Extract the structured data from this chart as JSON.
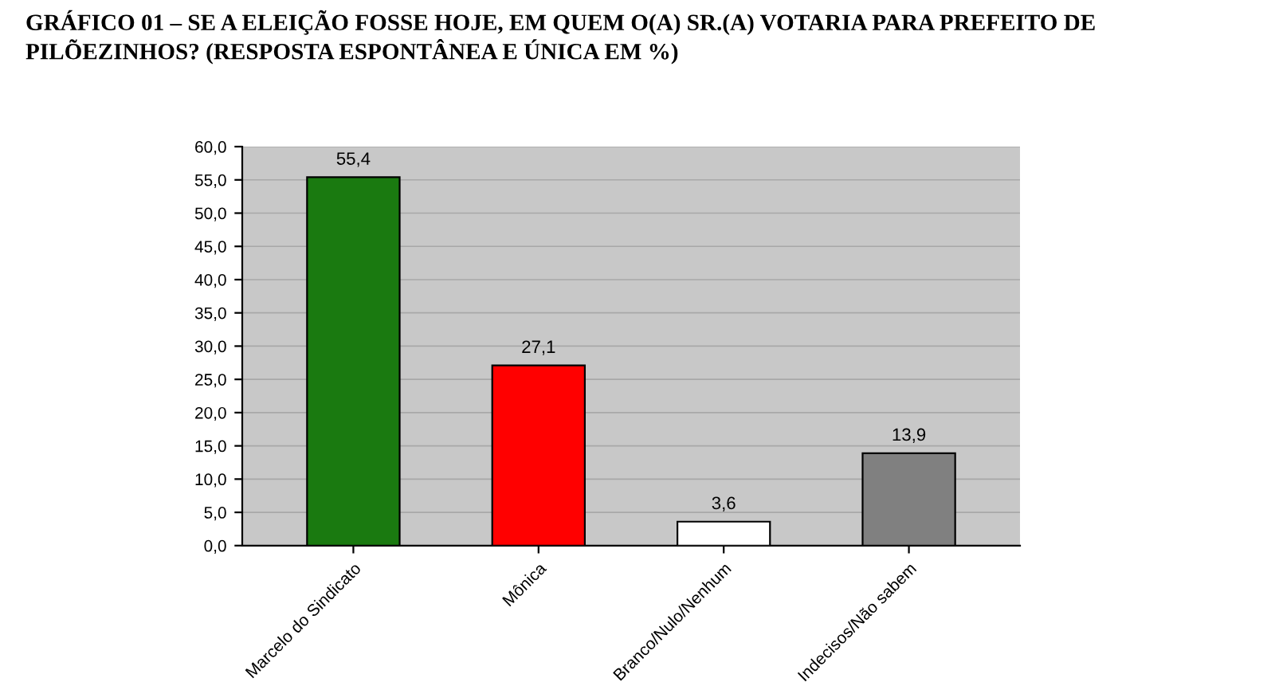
{
  "chart_data": {
    "type": "bar",
    "title": "GRÁFICO 01 – SE A ELEIÇÃO FOSSE HOJE, EM QUEM O(A) SR.(A) VOTARIA PARA PREFEITO DE PILÕEZINHOS? (RESPOSTA ESPONTÂNEA E ÚNICA EM %)",
    "categories": [
      "Marcelo do Sindicato",
      "Mônica",
      "Branco/Nulo/Nenhum",
      "Indecisos/Não sabem"
    ],
    "values": [
      55.4,
      27.1,
      3.6,
      13.9
    ],
    "value_labels": [
      "55,4",
      "27,1",
      "3,6",
      "13,9"
    ],
    "colors": [
      "#1a7a10",
      "#ff0000",
      "#ffffff",
      "#808080"
    ],
    "ylim": [
      0,
      60
    ],
    "yticks": [
      {
        "value": 0,
        "label": "0,0"
      },
      {
        "value": 5,
        "label": "5,0"
      },
      {
        "value": 10,
        "label": "10,0"
      },
      {
        "value": 15,
        "label": "15,0"
      },
      {
        "value": 20,
        "label": "20,0"
      },
      {
        "value": 25,
        "label": "25,0"
      },
      {
        "value": 30,
        "label": "30,0"
      },
      {
        "value": 35,
        "label": "35,0"
      },
      {
        "value": 40,
        "label": "40,0"
      },
      {
        "value": 45,
        "label": "45,0"
      },
      {
        "value": 50,
        "label": "50,0"
      },
      {
        "value": 55,
        "label": "55,0"
      },
      {
        "value": 60,
        "label": "60,0"
      }
    ],
    "grid": "y"
  }
}
